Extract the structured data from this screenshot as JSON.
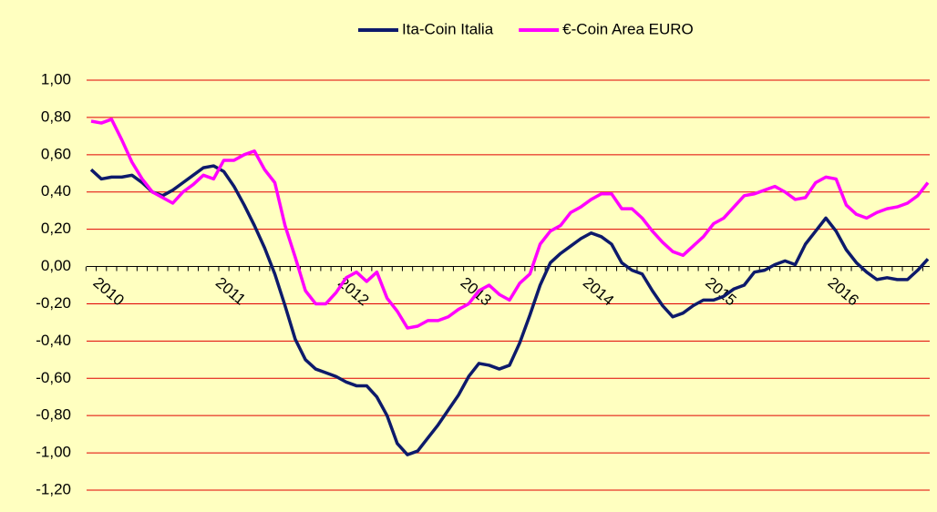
{
  "chart_data": {
    "type": "line",
    "categories": [
      "2010",
      null,
      null,
      null,
      null,
      null,
      null,
      null,
      null,
      null,
      null,
      null,
      "2011",
      null,
      null,
      null,
      null,
      null,
      null,
      null,
      null,
      null,
      null,
      null,
      "2012",
      null,
      null,
      null,
      null,
      null,
      null,
      null,
      null,
      null,
      null,
      null,
      "2013",
      null,
      null,
      null,
      null,
      null,
      null,
      null,
      null,
      null,
      null,
      null,
      "2014",
      null,
      null,
      null,
      null,
      null,
      null,
      null,
      null,
      null,
      null,
      null,
      "2015",
      null,
      null,
      null,
      null,
      null,
      null,
      null,
      null,
      null,
      null,
      null,
      "2016",
      null,
      null,
      null,
      null,
      null,
      null,
      null,
      null,
      null,
      null
    ],
    "series": [
      {
        "name": "Ita-Coin Italia",
        "color": "#0d1a6b",
        "values": [
          0.52,
          0.47,
          0.48,
          0.48,
          0.49,
          0.45,
          0.4,
          0.38,
          0.41,
          0.45,
          0.49,
          0.53,
          0.54,
          0.51,
          0.43,
          0.33,
          0.22,
          0.1,
          -0.04,
          -0.21,
          -0.39,
          -0.5,
          -0.55,
          -0.57,
          -0.59,
          -0.62,
          -0.64,
          -0.64,
          -0.7,
          -0.8,
          -0.95,
          -1.01,
          -0.99,
          -0.92,
          -0.85,
          -0.77,
          -0.69,
          -0.59,
          -0.52,
          -0.53,
          -0.55,
          -0.53,
          -0.41,
          -0.26,
          -0.1,
          0.02,
          0.07,
          0.11,
          0.15,
          0.18,
          0.16,
          0.12,
          0.02,
          -0.02,
          -0.04,
          -0.13,
          -0.21,
          -0.27,
          -0.25,
          -0.21,
          -0.18,
          -0.18,
          -0.16,
          -0.12,
          -0.1,
          -0.03,
          -0.02,
          0.01,
          0.03,
          0.01,
          0.12,
          0.19,
          0.26,
          0.19,
          0.09,
          0.02,
          -0.03,
          -0.07,
          -0.06,
          -0.07,
          -0.07,
          -0.02,
          0.04
        ]
      },
      {
        "name": "€-Coin Area EURO",
        "color": "#ff00ff",
        "values": [
          0.78,
          0.77,
          0.79,
          0.68,
          0.56,
          0.47,
          0.4,
          0.37,
          0.34,
          0.4,
          0.44,
          0.49,
          0.47,
          0.57,
          0.57,
          0.6,
          0.62,
          0.52,
          0.45,
          0.22,
          0.05,
          -0.13,
          -0.2,
          -0.2,
          -0.14,
          -0.06,
          -0.03,
          -0.08,
          -0.03,
          -0.17,
          -0.24,
          -0.33,
          -0.32,
          -0.29,
          -0.29,
          -0.27,
          -0.23,
          -0.2,
          -0.13,
          -0.1,
          -0.15,
          -0.18,
          -0.09,
          -0.04,
          0.12,
          0.19,
          0.22,
          0.29,
          0.32,
          0.36,
          0.39,
          0.39,
          0.31,
          0.31,
          0.26,
          0.19,
          0.13,
          0.08,
          0.06,
          0.11,
          0.16,
          0.23,
          0.26,
          0.32,
          0.38,
          0.39,
          0.41,
          0.43,
          0.4,
          0.36,
          0.37,
          0.45,
          0.48,
          0.47,
          0.33,
          0.28,
          0.26,
          0.29,
          0.31,
          0.32,
          0.34,
          0.38,
          0.45
        ]
      }
    ],
    "ylim": [
      -1.2,
      1.0
    ],
    "yticks": [
      {
        "value": -1.2,
        "label": "-1,20"
      },
      {
        "value": -1.0,
        "label": "-1,00"
      },
      {
        "value": -0.8,
        "label": "-0,80"
      },
      {
        "value": -0.6,
        "label": "-0,60"
      },
      {
        "value": -0.4,
        "label": "-0,40"
      },
      {
        "value": -0.2,
        "label": "-0,20"
      },
      {
        "value": 0,
        "label": "0,00"
      },
      {
        "value": 0.2,
        "label": "0,20"
      },
      {
        "value": 0.4,
        "label": "0,40"
      },
      {
        "value": 0.6,
        "label": "0,60"
      },
      {
        "value": 0.8,
        "label": "0,80"
      },
      {
        "value": 1.0,
        "label": "1,00"
      }
    ],
    "grid": true,
    "grid_color": "#e00000",
    "background": "#ffffc0",
    "legend": "top"
  }
}
